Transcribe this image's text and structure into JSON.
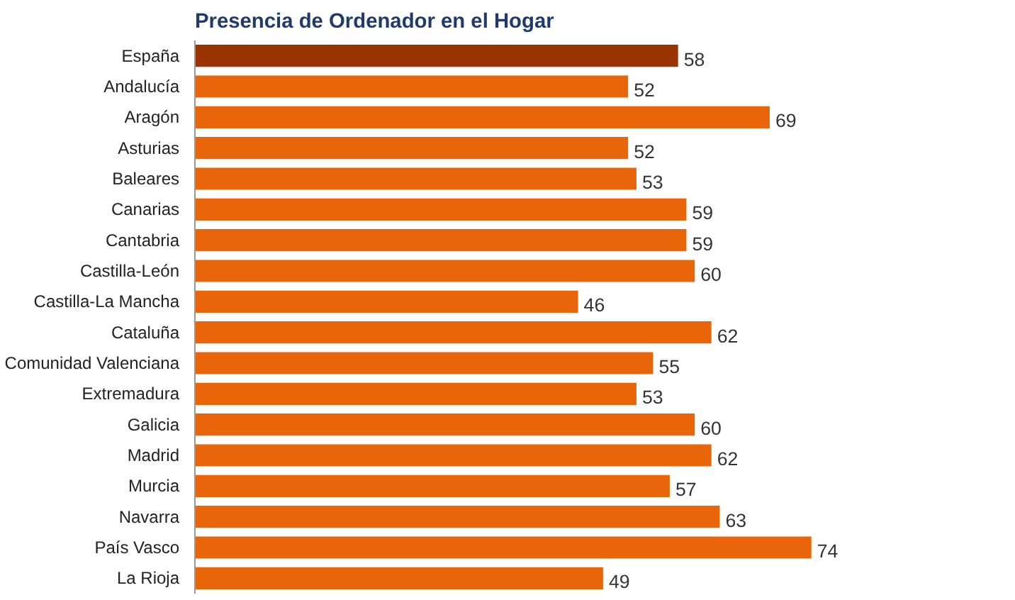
{
  "chart_data": {
    "type": "bar",
    "orientation": "horizontal",
    "title": "Presencia de Ordenador en el Hogar",
    "categories": [
      "España",
      "Andalucía",
      "Aragón",
      "Asturias",
      "Baleares",
      "Canarias",
      "Cantabria",
      "Castilla-León",
      "Castilla-La Mancha",
      "Cataluña",
      "Comunidad Valenciana",
      "Extremadura",
      "Galicia",
      "Madrid",
      "Murcia",
      "Navarra",
      "País Vasco",
      "La Rioja"
    ],
    "values": [
      58,
      52,
      69,
      52,
      53,
      59,
      59,
      60,
      46,
      62,
      55,
      53,
      60,
      62,
      57,
      63,
      74,
      49
    ],
    "colors": [
      "#993300",
      "#e8650a",
      "#e8650a",
      "#e8650a",
      "#e8650a",
      "#e8650a",
      "#e8650a",
      "#e8650a",
      "#e8650a",
      "#e8650a",
      "#e8650a",
      "#e8650a",
      "#e8650a",
      "#e8650a",
      "#e8650a",
      "#e8650a",
      "#e8650a",
      "#e8650a"
    ],
    "data_labels": true,
    "grid": false
  }
}
